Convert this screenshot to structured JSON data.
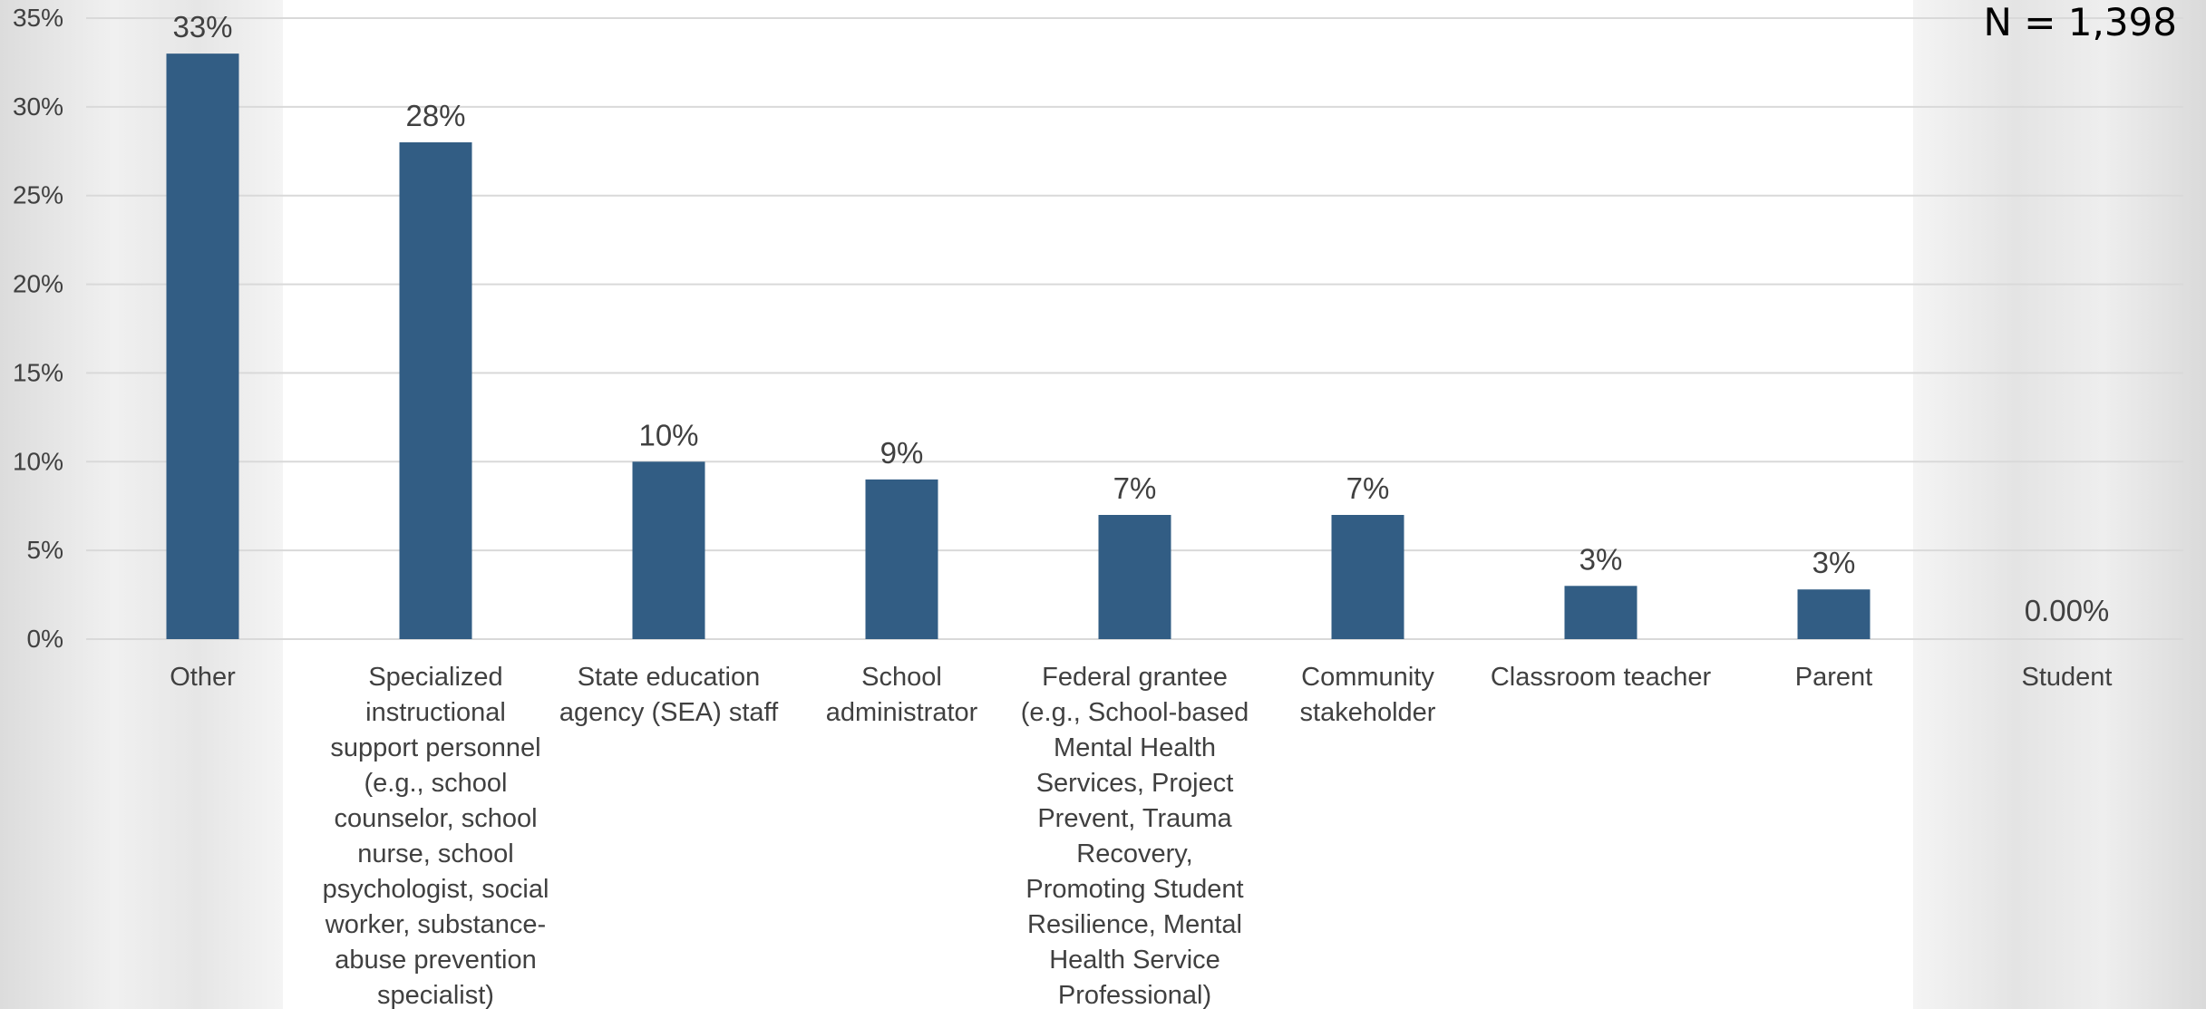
{
  "annotation": "N = 1,398",
  "colors": {
    "bar": "#325D84",
    "grid": "#d9d9d9",
    "text": "#404040"
  },
  "chart_data": {
    "type": "bar",
    "title": "",
    "xlabel": "",
    "ylabel": "",
    "ylim": [
      0,
      35
    ],
    "yticks": [
      0,
      5,
      10,
      15,
      20,
      25,
      30,
      35
    ],
    "ytick_labels": [
      "0%",
      "5%",
      "10%",
      "15%",
      "20%",
      "25%",
      "30%",
      "35%"
    ],
    "grid": true,
    "categories": [
      "Other",
      "Specialized instructional support personnel (e.g., school counselor, school nurse, school psychologist, social worker, substance-abuse prevention specialist)",
      "State education agency (SEA) staff",
      "School administrator",
      "Federal grantee (e.g., School-based Mental Health Services, Project Prevent, Trauma Recovery, Promoting Student Resilience, Mental Health Service Professional)",
      "Community stakeholder",
      "Classroom teacher",
      "Parent",
      "Student"
    ],
    "category_lines": [
      [
        "Other"
      ],
      [
        "Specialized",
        "instructional",
        "support personnel",
        "(e.g., school",
        "counselor, school",
        "nurse, school",
        "psychologist, social",
        "worker, substance-",
        "abuse prevention",
        "specialist)"
      ],
      [
        "State education",
        "agency (SEA) staff"
      ],
      [
        "School",
        "administrator"
      ],
      [
        "Federal grantee",
        "(e.g., School-based",
        "Mental Health",
        "Services, Project",
        "Prevent, Trauma",
        "Recovery,",
        "Promoting Student",
        "Resilience, Mental",
        "Health Service",
        "Professional)"
      ],
      [
        "Community",
        "stakeholder"
      ],
      [
        "Classroom teacher"
      ],
      [
        "Parent"
      ],
      [
        "Student"
      ]
    ],
    "values": [
      33,
      28,
      10,
      9,
      7,
      7,
      3,
      2.8,
      0
    ],
    "data_labels": [
      "33%",
      "28%",
      "10%",
      "9%",
      "7%",
      "7%",
      "3%",
      "3%",
      "0.00%"
    ]
  }
}
